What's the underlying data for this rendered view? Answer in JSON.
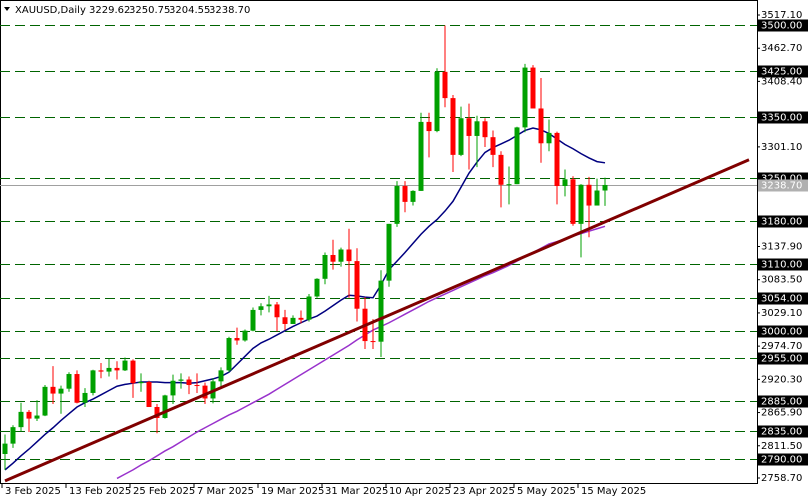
{
  "chart_data": {
    "type": "candlestick",
    "title": "XAUUSD,Daily",
    "up_color": "#00a000",
    "down_color": "#ff0000",
    "categories": [
      "3 Feb 2025",
      null,
      null,
      null,
      null,
      null,
      null,
      null,
      "13 Feb 2025",
      null,
      null,
      null,
      null,
      null,
      null,
      null,
      "25 Feb 2025",
      null,
      null,
      null,
      null,
      null,
      null,
      null,
      "7 Mar 2025",
      null,
      null,
      null,
      null,
      null,
      null,
      null,
      "19 Mar 2025",
      null,
      null,
      null,
      null,
      null,
      null,
      null,
      "31 Mar 2025",
      null,
      null,
      null,
      null,
      null,
      null,
      null,
      "10 Apr 2025",
      null,
      null,
      null,
      null,
      null,
      null,
      null,
      "23 Apr 2025",
      null,
      null,
      null,
      null,
      null,
      null,
      null,
      "5 May 2025",
      null,
      null,
      null,
      null,
      null,
      null,
      null,
      "15 May 2025",
      null,
      null,
      null
    ],
    "ohlc": [
      [
        2798,
        2830,
        2772,
        2815
      ],
      [
        2815,
        2845,
        2808,
        2842
      ],
      [
        2842,
        2882,
        2835,
        2867
      ],
      [
        2867,
        2870,
        2834,
        2856
      ],
      [
        2856,
        2886,
        2852,
        2861
      ],
      [
        2861,
        2911,
        2860,
        2908
      ],
      [
        2908,
        2942,
        2880,
        2897
      ],
      [
        2897,
        2910,
        2864,
        2905
      ],
      [
        2905,
        2932,
        2900,
        2929
      ],
      [
        2929,
        2935,
        2881,
        2882
      ],
      [
        2882,
        2906,
        2875,
        2898
      ],
      [
        2898,
        2936,
        2894,
        2935
      ],
      [
        2935,
        2947,
        2922,
        2933
      ],
      [
        2933,
        2954,
        2925,
        2939
      ],
      [
        2939,
        2950,
        2920,
        2935
      ],
      [
        2935,
        2956,
        2934,
        2951
      ],
      [
        2951,
        2953,
        2890,
        2914
      ],
      [
        2914,
        2930,
        2900,
        2916
      ],
      [
        2916,
        2918,
        2876,
        2875
      ],
      [
        2875,
        2880,
        2832,
        2857
      ],
      [
        2857,
        2895,
        2856,
        2894
      ],
      [
        2894,
        2928,
        2880,
        2918
      ],
      [
        2918,
        2930,
        2905,
        2920
      ],
      [
        2920,
        2925,
        2896,
        2911
      ],
      [
        2911,
        2930,
        2898,
        2910
      ],
      [
        2910,
        2915,
        2880,
        2889
      ],
      [
        2889,
        2922,
        2881,
        2917
      ],
      [
        2917,
        2940,
        2905,
        2935
      ],
      [
        2935,
        2990,
        2932,
        2988
      ],
      [
        2988,
        3005,
        2977,
        2984
      ],
      [
        2984,
        3002,
        2982,
        3000
      ],
      [
        3000,
        3038,
        2999,
        3034
      ],
      [
        3034,
        3045,
        3025,
        3040
      ],
      [
        3040,
        3057,
        3030,
        3043
      ],
      [
        3043,
        3047,
        2999,
        3022
      ],
      [
        3022,
        3034,
        3001,
        3011
      ],
      [
        3011,
        3025,
        3011,
        3021
      ],
      [
        3021,
        3033,
        3012,
        3018
      ],
      [
        3018,
        3060,
        3015,
        3056
      ],
      [
        3056,
        3086,
        3054,
        3085
      ],
      [
        3085,
        3128,
        3076,
        3124
      ],
      [
        3124,
        3149,
        3100,
        3113
      ],
      [
        3113,
        3136,
        3105,
        3133
      ],
      [
        3133,
        3167,
        3054,
        3114
      ],
      [
        3114,
        3135,
        3015,
        3036
      ],
      [
        3036,
        3055,
        2970,
        2983
      ],
      [
        2983,
        3019,
        2970,
        2982
      ],
      [
        2982,
        3099,
        2957,
        3082
      ],
      [
        3082,
        3175,
        3072,
        3175
      ],
      [
        3175,
        3245,
        3170,
        3237
      ],
      [
        3237,
        3245,
        3194,
        3211
      ],
      [
        3211,
        3230,
        3205,
        3229
      ],
      [
        3229,
        3357,
        3229,
        3342
      ],
      [
        3342,
        3357,
        3284,
        3327
      ],
      [
        3327,
        3430,
        3325,
        3424
      ],
      [
        3424,
        3500,
        3366,
        3381
      ],
      [
        3381,
        3386,
        3260,
        3288
      ],
      [
        3288,
        3367,
        3286,
        3348
      ],
      [
        3348,
        3372,
        3264,
        3319
      ],
      [
        3319,
        3352,
        3268,
        3343
      ],
      [
        3343,
        3348,
        3301,
        3317
      ],
      [
        3317,
        3328,
        3268,
        3288
      ],
      [
        3288,
        3294,
        3202,
        3239
      ],
      [
        3239,
        3269,
        3207,
        3240
      ],
      [
        3240,
        3334,
        3240,
        3333
      ],
      [
        3333,
        3437,
        3325,
        3431
      ],
      [
        3431,
        3435,
        3366,
        3364
      ],
      [
        3364,
        3414,
        3275,
        3307
      ],
      [
        3307,
        3346,
        3294,
        3324
      ],
      [
        3324,
        3326,
        3207,
        3237
      ],
      [
        3237,
        3264,
        3220,
        3248
      ],
      [
        3248,
        3253,
        3172,
        3175
      ],
      [
        3175,
        3240,
        3120,
        3239
      ],
      [
        3239,
        3252,
        3153,
        3205
      ],
      [
        3205,
        3249,
        3205,
        3229.62
      ],
      [
        3229.62,
        3250.75,
        3204.55,
        3238.7
      ]
    ],
    "series": [
      {
        "color": "#000080",
        "values": [
          2772,
          2783,
          2795,
          2806,
          2818,
          2830,
          2841,
          2853,
          2864,
          2875,
          2882,
          2888,
          2895,
          2902,
          2909,
          2912,
          2914,
          2916,
          2916,
          2916,
          2915,
          2915,
          2915,
          2914,
          2915,
          2918,
          2921,
          2925,
          2932,
          2945,
          2958,
          2971,
          2980,
          2986,
          2993,
          3000,
          3007,
          3013,
          3019,
          3024,
          3032,
          3041,
          3050,
          3058,
          3057,
          3055,
          3054,
          3075,
          3100,
          3114,
          3128,
          3143,
          3158,
          3171,
          3182,
          3196,
          3212,
          3235,
          3258,
          3276,
          3292,
          3300,
          3306,
          3312,
          3320,
          3328,
          3332,
          3329,
          3323,
          3314,
          3305,
          3298,
          3290,
          3283,
          3277,
          3275
        ]
      },
      {
        "color": "#9932cc",
        "values": [
          null,
          null,
          null,
          null,
          null,
          null,
          null,
          null,
          null,
          null,
          null,
          null,
          null,
          null,
          2758,
          2765,
          2772,
          2780,
          2787,
          2795,
          2803,
          2810,
          2818,
          2826,
          2834,
          2841,
          2848,
          2855,
          2862,
          2868,
          2875,
          2882,
          2889,
          2896,
          2904,
          2912,
          2920,
          2928,
          2936,
          2944,
          2952,
          2960,
          2968,
          2976,
          2985,
          2993,
          3001,
          3007,
          3013,
          3020,
          3027,
          3034,
          3041,
          3048,
          3054,
          3060,
          3066,
          3072,
          3078,
          3084,
          3090,
          3095,
          3101,
          3107,
          3114,
          3121,
          3128,
          3135,
          3142,
          3146,
          3150,
          3155,
          3159,
          3163,
          3167,
          3171
        ]
      }
    ],
    "trendline": {
      "color": "#800000",
      "x": [
        0,
        93
      ],
      "values": [
        2754,
        3280
      ]
    },
    "levels_color": "#006400",
    "levels": [
      {
        "value": 3500,
        "label": "3500.00"
      },
      {
        "value": 3425,
        "label": "3425.00"
      },
      {
        "value": 3350,
        "label": "3350.00"
      },
      {
        "value": 3250,
        "label": "3250.00"
      },
      {
        "value": 3180,
        "label": "3180.00"
      },
      {
        "value": 3110,
        "label": "3110.00"
      },
      {
        "value": 3054,
        "label": "3054.00"
      },
      {
        "value": 3000,
        "label": "3000.00"
      },
      {
        "value": 2955,
        "label": "2955.00"
      },
      {
        "value": 2885,
        "label": "2885.00"
      },
      {
        "value": 2835,
        "label": "2835.00"
      },
      {
        "value": 2790,
        "label": "2790.00"
      }
    ],
    "current_price": {
      "value": 3238.7,
      "label": "3238.70"
    },
    "ylim": [
      2750.5,
      3541.7
    ],
    "yticks": [
      {
        "value": 3517.1,
        "label": "3517.10"
      },
      {
        "value": 3462.7,
        "label": "3462.70"
      },
      {
        "value": 3408.4,
        "label": "3408.40"
      },
      {
        "value": 3301.1,
        "label": "3301.10"
      },
      {
        "value": 3137.9,
        "label": "3137.90"
      },
      {
        "value": 3083.5,
        "label": "3083.50"
      },
      {
        "value": 3029.1,
        "label": "3029.10"
      },
      {
        "value": 2974.7,
        "label": "2974.70"
      },
      {
        "value": 2920.3,
        "label": "2920.30"
      },
      {
        "value": 2865.9,
        "label": "2865.90"
      },
      {
        "value": 2811.5,
        "label": "2811.50"
      },
      {
        "value": 2758.7,
        "label": "2758.70"
      }
    ]
  }
}
